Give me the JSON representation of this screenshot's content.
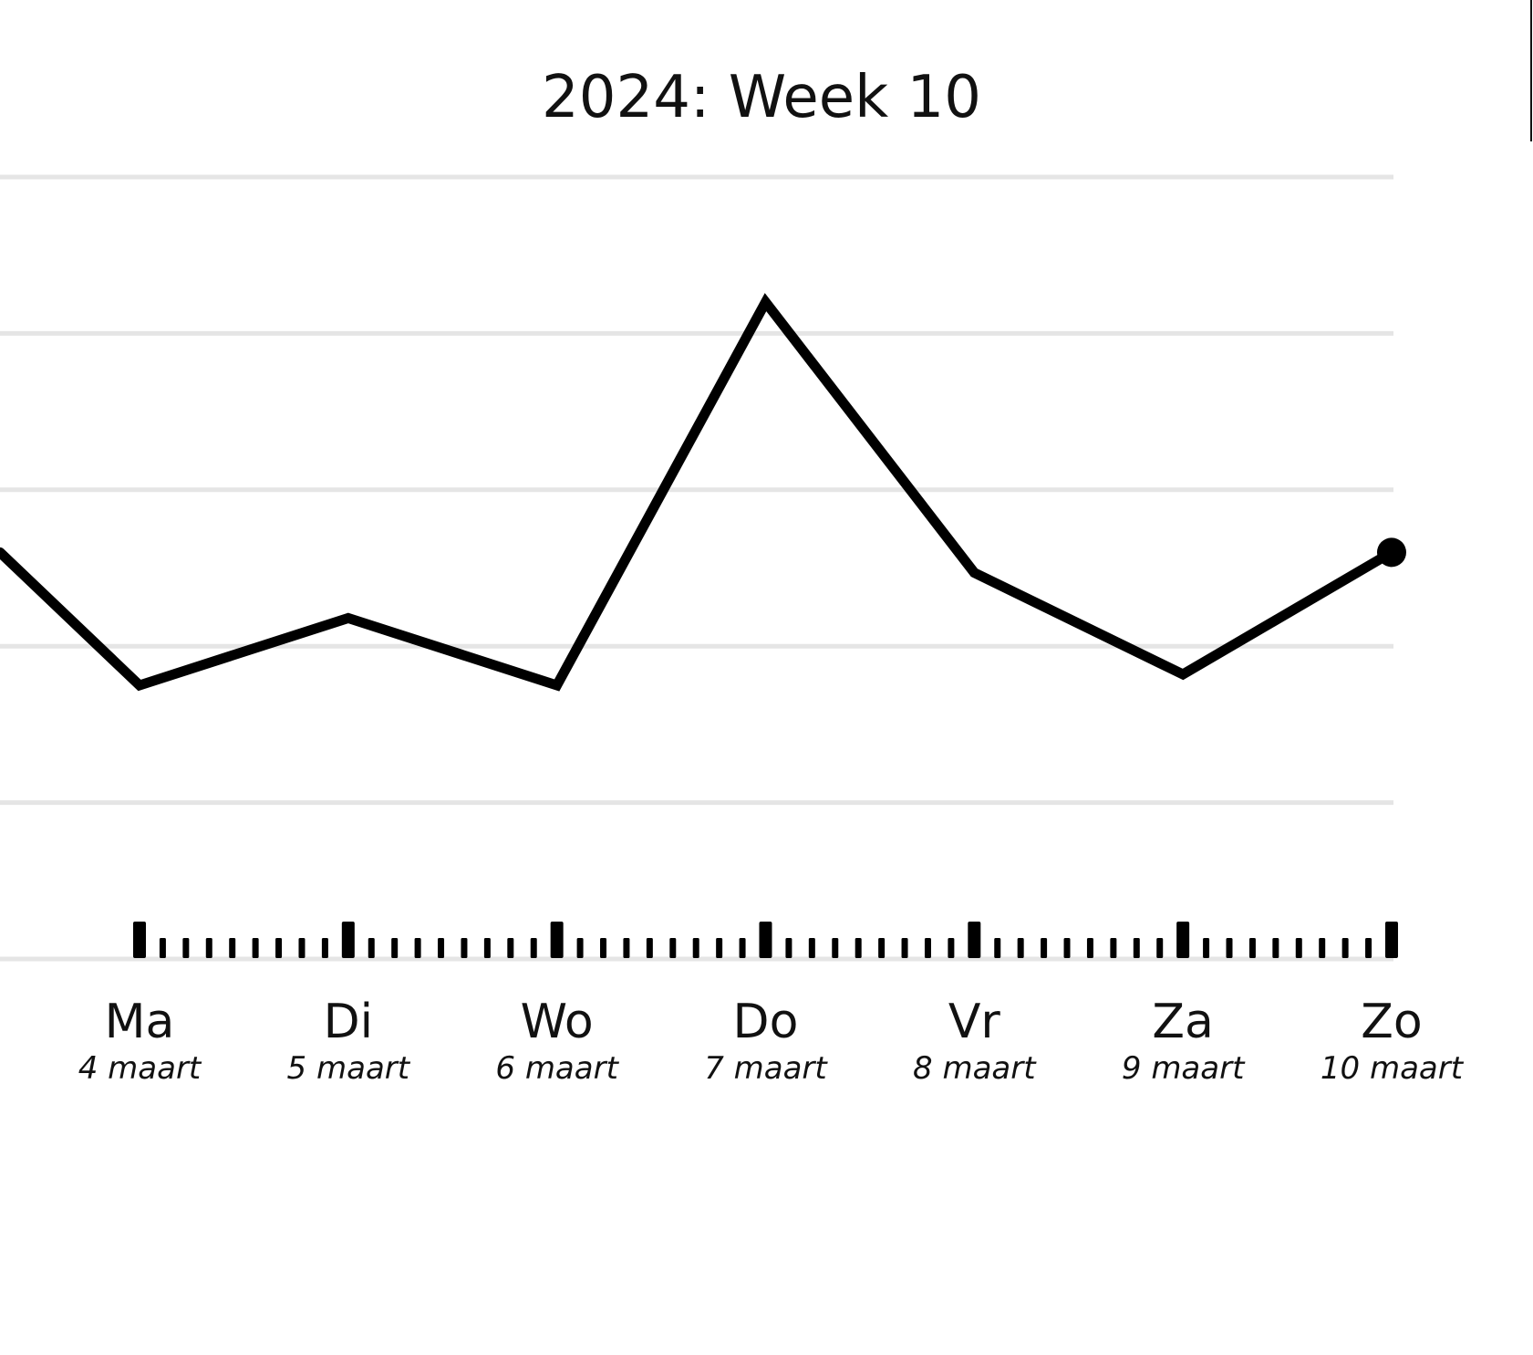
{
  "chart_data": {
    "type": "line",
    "title": "2024: Week 10",
    "xlabel": "",
    "ylabel": "",
    "categories": [
      "Ma",
      "Di",
      "Wo",
      "Do",
      "Vr",
      "Za",
      "Zo"
    ],
    "dates": [
      "4 maart",
      "5 maart",
      "6 maart",
      "7 maart",
      "8 maart",
      "9 maart",
      "10 maart"
    ],
    "series": [
      {
        "values": [
          0.75,
          1.18,
          0.75,
          3.2,
          1.47,
          0.82,
          1.6
        ],
        "start_value": 1.6,
        "line_color": "#000000"
      }
    ],
    "ylim": [
      -1,
      4
    ],
    "y_gridlines": [
      0,
      1,
      2,
      3,
      4
    ],
    "y_tick_labels_visible": false,
    "grid": true,
    "grid_color": "#e5e5e5",
    "legend": "none",
    "minor_ticks_per_day": 8,
    "end_marker": true
  }
}
